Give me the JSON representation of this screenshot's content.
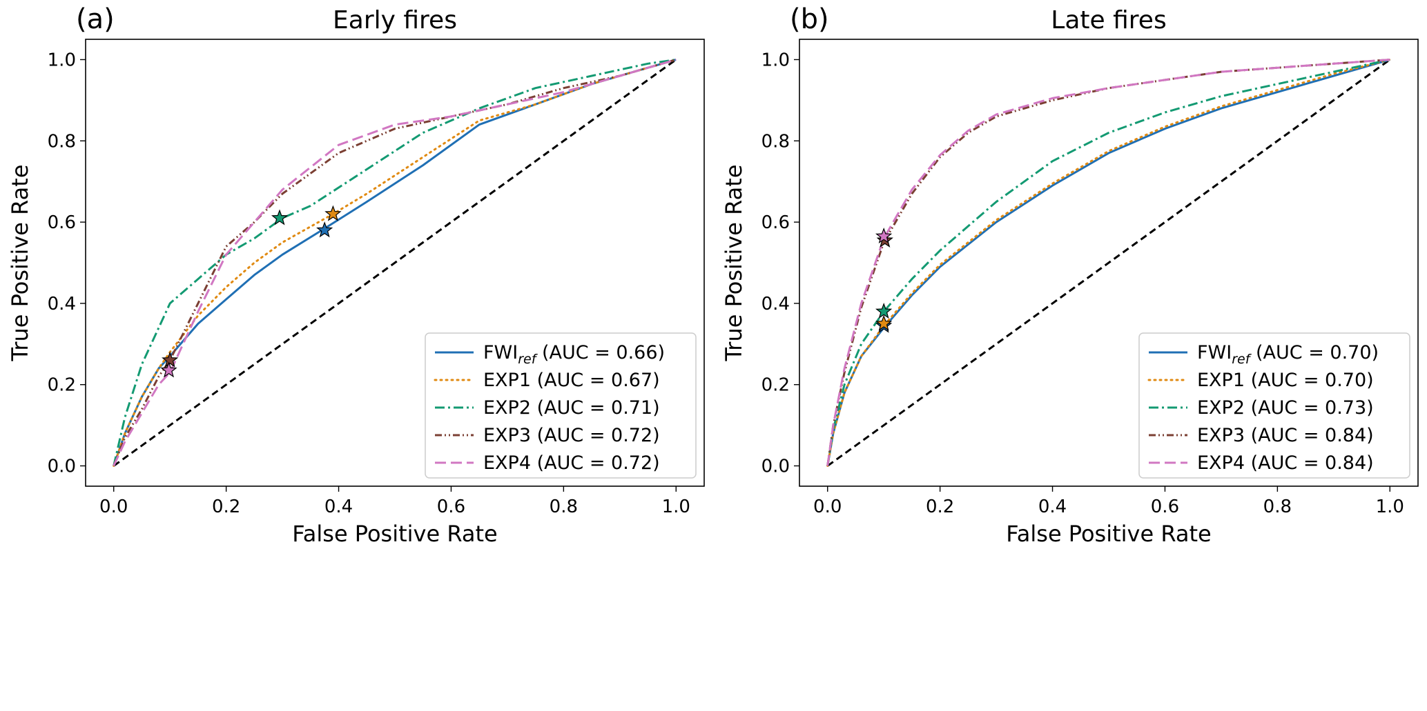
{
  "colors": {
    "fwi": "#1f6fb4",
    "exp1": "#e08a12",
    "exp2": "#139a72",
    "exp3": "#7b3f33",
    "exp4": "#d177c2",
    "chance": "#000000"
  },
  "chart_data": [
    {
      "type": "line",
      "panel_label": "(a)",
      "title": "Early fires",
      "xlabel": "False Positive Rate",
      "ylabel": "True Positive Rate",
      "xlim": [
        -0.05,
        1.05
      ],
      "ylim": [
        -0.05,
        1.05
      ],
      "xticks": [
        0.0,
        0.2,
        0.4,
        0.6,
        0.8,
        1.0
      ],
      "yticks": [
        0.0,
        0.2,
        0.4,
        0.6,
        0.8,
        1.0
      ],
      "tick_labels": [
        "0.0",
        "0.2",
        "0.4",
        "0.6",
        "0.8",
        "1.0"
      ],
      "legend_position": "lower-right",
      "chance_line": {
        "x": [
          0,
          1
        ],
        "y": [
          0,
          1
        ]
      },
      "series": [
        {
          "key": "fwi",
          "name": "FWI",
          "sub": "ref",
          "auc_text": " (AUC = 0.66)",
          "style": "solid",
          "x": [
            0,
            0.02,
            0.05,
            0.08,
            0.1,
            0.15,
            0.2,
            0.25,
            0.3,
            0.37,
            0.45,
            0.55,
            0.65,
            0.75,
            0.85,
            0.95,
            1.0
          ],
          "y": [
            0,
            0.08,
            0.17,
            0.24,
            0.27,
            0.35,
            0.41,
            0.47,
            0.52,
            0.58,
            0.65,
            0.74,
            0.84,
            0.89,
            0.94,
            0.98,
            1.0
          ],
          "marker": [
            0.375,
            0.58
          ]
        },
        {
          "key": "exp1",
          "name": "EXP1",
          "sub": "",
          "auc_text": " (AUC = 0.67)",
          "style": "dotted",
          "x": [
            0,
            0.02,
            0.05,
            0.08,
            0.1,
            0.15,
            0.2,
            0.25,
            0.3,
            0.39,
            0.45,
            0.55,
            0.65,
            0.75,
            0.85,
            0.95,
            1.0
          ],
          "y": [
            0,
            0.08,
            0.17,
            0.24,
            0.28,
            0.37,
            0.44,
            0.5,
            0.55,
            0.62,
            0.67,
            0.76,
            0.85,
            0.89,
            0.94,
            0.98,
            1.0
          ],
          "marker": [
            0.39,
            0.62
          ]
        },
        {
          "key": "exp2",
          "name": "EXP2",
          "sub": "",
          "auc_text": " (AUC = 0.71)",
          "style": "dashdot",
          "x": [
            0,
            0.02,
            0.05,
            0.08,
            0.1,
            0.15,
            0.2,
            0.25,
            0.3,
            0.35,
            0.45,
            0.55,
            0.65,
            0.75,
            0.85,
            0.95,
            1.0
          ],
          "y": [
            0,
            0.12,
            0.25,
            0.34,
            0.4,
            0.46,
            0.52,
            0.56,
            0.61,
            0.64,
            0.73,
            0.82,
            0.88,
            0.93,
            0.96,
            0.99,
            1.0
          ],
          "marker": [
            0.295,
            0.61
          ]
        },
        {
          "key": "exp3",
          "name": "EXP3",
          "sub": "",
          "auc_text": " (AUC = 0.72)",
          "style": "dashdotdot",
          "x": [
            0,
            0.02,
            0.05,
            0.08,
            0.1,
            0.15,
            0.2,
            0.25,
            0.3,
            0.4,
            0.5,
            0.6,
            0.7,
            0.8,
            0.9,
            1.0
          ],
          "y": [
            0,
            0.07,
            0.14,
            0.22,
            0.26,
            0.4,
            0.54,
            0.6,
            0.67,
            0.77,
            0.83,
            0.86,
            0.89,
            0.93,
            0.96,
            1.0
          ],
          "marker": [
            0.1,
            0.26
          ]
        },
        {
          "key": "exp4",
          "name": "EXP4",
          "sub": "",
          "auc_text": " (AUC = 0.72)",
          "style": "dashed",
          "x": [
            0,
            0.02,
            0.05,
            0.08,
            0.1,
            0.15,
            0.2,
            0.25,
            0.3,
            0.4,
            0.5,
            0.6,
            0.7,
            0.8,
            0.9,
            1.0
          ],
          "y": [
            0,
            0.06,
            0.13,
            0.2,
            0.23,
            0.38,
            0.52,
            0.6,
            0.68,
            0.79,
            0.84,
            0.86,
            0.89,
            0.92,
            0.96,
            1.0
          ],
          "marker": [
            0.098,
            0.235
          ]
        }
      ]
    },
    {
      "type": "line",
      "panel_label": "(b)",
      "title": "Late fires",
      "xlabel": "False Positive Rate",
      "ylabel": "True Positive Rate",
      "xlim": [
        -0.05,
        1.05
      ],
      "ylim": [
        -0.05,
        1.05
      ],
      "xticks": [
        0.0,
        0.2,
        0.4,
        0.6,
        0.8,
        1.0
      ],
      "yticks": [
        0.0,
        0.2,
        0.4,
        0.6,
        0.8,
        1.0
      ],
      "tick_labels": [
        "0.0",
        "0.2",
        "0.4",
        "0.6",
        "0.8",
        "1.0"
      ],
      "legend_position": "lower-right",
      "chance_line": {
        "x": [
          0,
          1
        ],
        "y": [
          0,
          1
        ]
      },
      "series": [
        {
          "key": "fwi",
          "name": "FWI",
          "sub": "ref",
          "auc_text": " (AUC = 0.70)",
          "style": "solid",
          "x": [
            0,
            0.01,
            0.03,
            0.06,
            0.1,
            0.15,
            0.2,
            0.3,
            0.4,
            0.5,
            0.6,
            0.7,
            0.8,
            0.9,
            1.0
          ],
          "y": [
            0,
            0.08,
            0.18,
            0.27,
            0.34,
            0.42,
            0.49,
            0.6,
            0.69,
            0.77,
            0.83,
            0.88,
            0.92,
            0.96,
            1.0
          ],
          "marker": [
            0.1,
            0.345
          ]
        },
        {
          "key": "exp1",
          "name": "EXP1",
          "sub": "",
          "auc_text": " (AUC = 0.70)",
          "style": "dotted",
          "x": [
            0,
            0.01,
            0.03,
            0.06,
            0.1,
            0.15,
            0.2,
            0.3,
            0.4,
            0.5,
            0.6,
            0.7,
            0.8,
            0.9,
            1.0
          ],
          "y": [
            0,
            0.08,
            0.18,
            0.27,
            0.345,
            0.425,
            0.495,
            0.605,
            0.695,
            0.775,
            0.835,
            0.885,
            0.925,
            0.965,
            1.0
          ],
          "marker": [
            0.1,
            0.35
          ]
        },
        {
          "key": "exp2",
          "name": "EXP2",
          "sub": "",
          "auc_text": " (AUC = 0.73)",
          "style": "dashdot",
          "x": [
            0,
            0.01,
            0.03,
            0.06,
            0.1,
            0.15,
            0.2,
            0.3,
            0.4,
            0.5,
            0.6,
            0.7,
            0.8,
            0.9,
            1.0
          ],
          "y": [
            0,
            0.09,
            0.2,
            0.3,
            0.38,
            0.46,
            0.53,
            0.65,
            0.75,
            0.82,
            0.87,
            0.91,
            0.94,
            0.97,
            1.0
          ],
          "marker": [
            0.1,
            0.38
          ]
        },
        {
          "key": "exp3",
          "name": "EXP3",
          "sub": "",
          "auc_text": " (AUC = 0.84)",
          "style": "dashdotdot",
          "x": [
            0,
            0.01,
            0.03,
            0.06,
            0.1,
            0.15,
            0.2,
            0.25,
            0.3,
            0.4,
            0.5,
            0.6,
            0.7,
            0.8,
            0.9,
            1.0
          ],
          "y": [
            0,
            0.1,
            0.23,
            0.39,
            0.55,
            0.67,
            0.76,
            0.82,
            0.86,
            0.9,
            0.93,
            0.95,
            0.97,
            0.98,
            0.99,
            1.0
          ],
          "marker": [
            0.102,
            0.555
          ]
        },
        {
          "key": "exp4",
          "name": "EXP4",
          "sub": "",
          "auc_text": " (AUC = 0.84)",
          "style": "dashed",
          "x": [
            0,
            0.01,
            0.03,
            0.06,
            0.1,
            0.15,
            0.2,
            0.25,
            0.3,
            0.4,
            0.5,
            0.6,
            0.7,
            0.8,
            0.9,
            1.0
          ],
          "y": [
            0,
            0.1,
            0.24,
            0.4,
            0.56,
            0.68,
            0.765,
            0.825,
            0.865,
            0.905,
            0.93,
            0.95,
            0.97,
            0.98,
            0.99,
            1.0
          ],
          "marker": [
            0.1,
            0.565
          ]
        }
      ]
    }
  ]
}
